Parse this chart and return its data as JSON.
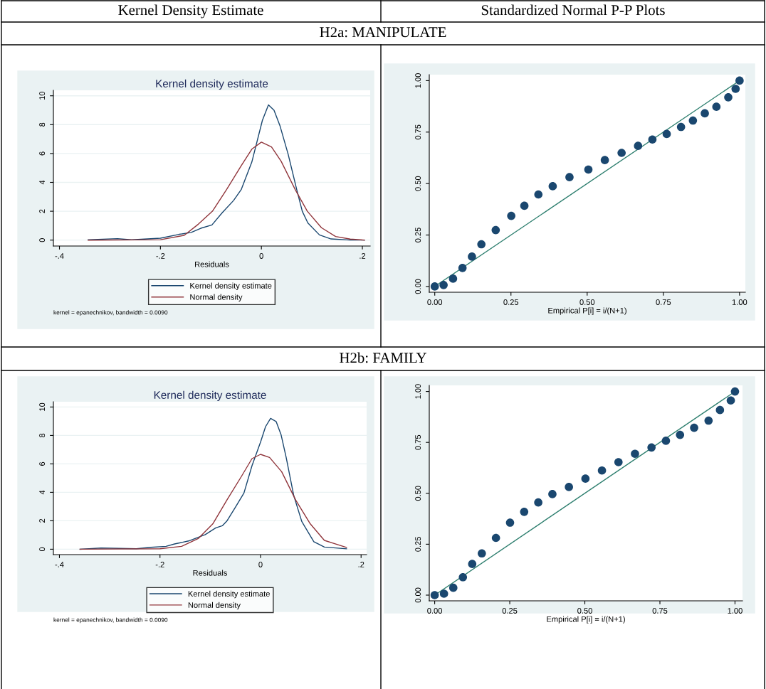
{
  "chart_data": [
    {
      "type": "other",
      "annotations": [
        "Kernel Density Estimate",
        "Standardized Normal P-P Plots",
        "H2a: MANIPULATE",
        "H2b: FAMILY"
      ]
    },
    {
      "type": "line",
      "title": "Kernel density estimate",
      "xlabel": "Residuals",
      "xlim": [
        -0.412,
        0.2155
      ],
      "ylim": [
        -0.41,
        10.38
      ],
      "xticks": [
        {
          "value": -0.4,
          "label": "-.4"
        },
        {
          "value": -0.2,
          "label": "-.2"
        },
        0,
        {
          "value": 0.2,
          "label": ".2"
        }
      ],
      "yticks": [
        0,
        2,
        4,
        6,
        8,
        10
      ],
      "grid": "y",
      "legend": "bottom",
      "annotations": [
        "kernel = epanechnikov, bandwidth = 0.0090"
      ],
      "series": [
        {
          "name": "Kernel density estimate",
          "color": "#1a476f",
          "x": [
            -0.343,
            -0.285,
            -0.257,
            -0.2,
            -0.163,
            -0.139,
            -0.12,
            -0.098,
            -0.078,
            -0.055,
            -0.04,
            -0.019,
            0.002,
            0.014,
            0.025,
            0.037,
            0.053,
            0.07,
            0.081,
            0.092,
            0.115,
            0.138,
            0.176,
            0.204
          ],
          "values": [
            0.03,
            0.1,
            0.02,
            0.13,
            0.4,
            0.53,
            0.82,
            1.05,
            1.88,
            2.75,
            3.5,
            5.4,
            8.3,
            9.37,
            9.0,
            7.9,
            5.95,
            3.5,
            2.0,
            1.19,
            0.36,
            0.08,
            0,
            0
          ]
        },
        {
          "name": "Normal density",
          "color": "#90353b",
          "x": [
            -0.343,
            -0.2,
            -0.153,
            -0.125,
            -0.097,
            -0.069,
            -0.04,
            -0.019,
            0,
            0.02,
            0.039,
            0.067,
            0.091,
            0.119,
            0.147,
            0.176,
            0.204
          ],
          "values": [
            0,
            0.03,
            0.33,
            1.1,
            2.0,
            3.5,
            5.15,
            6.3,
            6.79,
            6.46,
            5.47,
            3.5,
            2.0,
            0.86,
            0.25,
            0.07,
            0
          ]
        }
      ]
    },
    {
      "type": "scatter",
      "xlabel": "Empirical P[i] = i/(N+1)",
      "xlim": [
        -0.018,
        1.019
      ],
      "ylim": [
        -0.028,
        1.029
      ],
      "xticks": [
        {
          "value": 0,
          "label": "0.00"
        },
        {
          "value": 0.25,
          "label": "0.25"
        },
        {
          "value": 0.5,
          "label": "0.50"
        },
        {
          "value": 0.75,
          "label": "0.75"
        },
        {
          "value": 1,
          "label": "1.00"
        }
      ],
      "yticks": [
        {
          "value": 0,
          "label": "0.00"
        },
        {
          "value": 0.25,
          "label": "0.25"
        },
        {
          "value": 0.5,
          "label": "0.50"
        },
        {
          "value": 0.75,
          "label": "0.75"
        },
        {
          "value": 1,
          "label": "1.00"
        }
      ],
      "series": [
        {
          "color": "#1a476f",
          "marker": "circle",
          "x": [
            0,
            0.029,
            0.06,
            0.091,
            0.122,
            0.153,
            0.2,
            0.251,
            0.294,
            0.34,
            0.387,
            0.442,
            0.504,
            0.558,
            0.613,
            0.667,
            0.714,
            0.761,
            0.808,
            0.847,
            0.886,
            0.924,
            0.963,
            0.987,
            1
          ],
          "values": [
            0,
            0.007,
            0.038,
            0.09,
            0.145,
            0.205,
            0.274,
            0.343,
            0.392,
            0.447,
            0.487,
            0.531,
            0.568,
            0.614,
            0.649,
            0.683,
            0.714,
            0.741,
            0.775,
            0.806,
            0.841,
            0.873,
            0.919,
            0.96,
            1
          ]
        },
        {
          "type": "line",
          "color": "#2e7f6f",
          "x": [
            0,
            1
          ],
          "values": [
            0,
            1
          ]
        }
      ]
    },
    {
      "type": "line",
      "title": "Kernel density estimate",
      "xlabel": "Residuals",
      "xlim": [
        -0.412,
        0.211
      ],
      "ylim": [
        -0.38,
        10.37
      ],
      "xticks": [
        {
          "value": -0.4,
          "label": "-.4"
        },
        {
          "value": -0.2,
          "label": "-.2"
        },
        0,
        {
          "value": 0.2,
          "label": ".2"
        }
      ],
      "yticks": [
        0,
        2,
        4,
        6,
        8,
        10
      ],
      "grid": "y",
      "legend": "bottom",
      "annotations": [
        "kernel = epanechnikov, bandwidth = 0.0090"
      ],
      "series": [
        {
          "name": "Kernel density estimate",
          "color": "#1a476f",
          "x": [
            -0.359,
            -0.317,
            -0.247,
            -0.218,
            -0.188,
            -0.171,
            -0.143,
            -0.11,
            -0.089,
            -0.076,
            -0.067,
            -0.05,
            -0.033,
            -0.017,
            0,
            0.01,
            0.02,
            0.031,
            0.041,
            0.051,
            0.066,
            0.082,
            0.106,
            0.127,
            0.171
          ],
          "values": [
            0,
            0.08,
            0.03,
            0.13,
            0.2,
            0.37,
            0.58,
            1.03,
            1.5,
            1.65,
            1.98,
            2.95,
            3.95,
            5.87,
            7.53,
            8.62,
            9.2,
            8.98,
            8.03,
            6.45,
            3.78,
            1.95,
            0.53,
            0.15,
            0.03
          ]
        },
        {
          "name": "Normal density",
          "color": "#90353b",
          "x": [
            -0.359,
            -0.2,
            -0.157,
            -0.124,
            -0.095,
            -0.067,
            -0.038,
            -0.017,
            0,
            0.018,
            0.042,
            0.07,
            0.099,
            0.127,
            0.171
          ],
          "values": [
            0,
            0.03,
            0.2,
            0.75,
            1.78,
            3.45,
            5.12,
            6.37,
            6.67,
            6.45,
            5.45,
            3.45,
            1.78,
            0.62,
            0.12
          ]
        }
      ]
    },
    {
      "type": "scatter",
      "xlabel": "Empirical P[i] = i/(N+1)",
      "xlim": [
        -0.018,
        1.025
      ],
      "ylim": [
        -0.028,
        1.03
      ],
      "xticks": [
        {
          "value": 0,
          "label": "0.00"
        },
        {
          "value": 0.25,
          "label": "0.25"
        },
        {
          "value": 0.5,
          "label": "0.50"
        },
        {
          "value": 0.75,
          "label": "0.75"
        },
        {
          "value": 1,
          "label": "1.00"
        }
      ],
      "yticks": [
        {
          "value": 0,
          "label": "0.00"
        },
        {
          "value": 0.25,
          "label": "0.25"
        },
        {
          "value": 0.5,
          "label": "0.50"
        },
        {
          "value": 0.75,
          "label": "0.75"
        },
        {
          "value": 1,
          "label": "1.00"
        }
      ],
      "series": [
        {
          "color": "#1a476f",
          "marker": "circle",
          "x": [
            0,
            0.031,
            0.062,
            0.094,
            0.125,
            0.157,
            0.204,
            0.251,
            0.298,
            0.345,
            0.392,
            0.447,
            0.502,
            0.557,
            0.612,
            0.667,
            0.722,
            0.77,
            0.817,
            0.864,
            0.912,
            0.95,
            0.986,
            1
          ],
          "values": [
            0,
            0.007,
            0.036,
            0.088,
            0.153,
            0.205,
            0.281,
            0.356,
            0.409,
            0.455,
            0.496,
            0.531,
            0.572,
            0.612,
            0.653,
            0.694,
            0.725,
            0.758,
            0.787,
            0.822,
            0.857,
            0.909,
            0.956,
            1
          ]
        },
        {
          "type": "line",
          "color": "#2e7f6f",
          "x": [
            0,
            1
          ],
          "values": [
            0,
            1
          ]
        }
      ]
    }
  ]
}
